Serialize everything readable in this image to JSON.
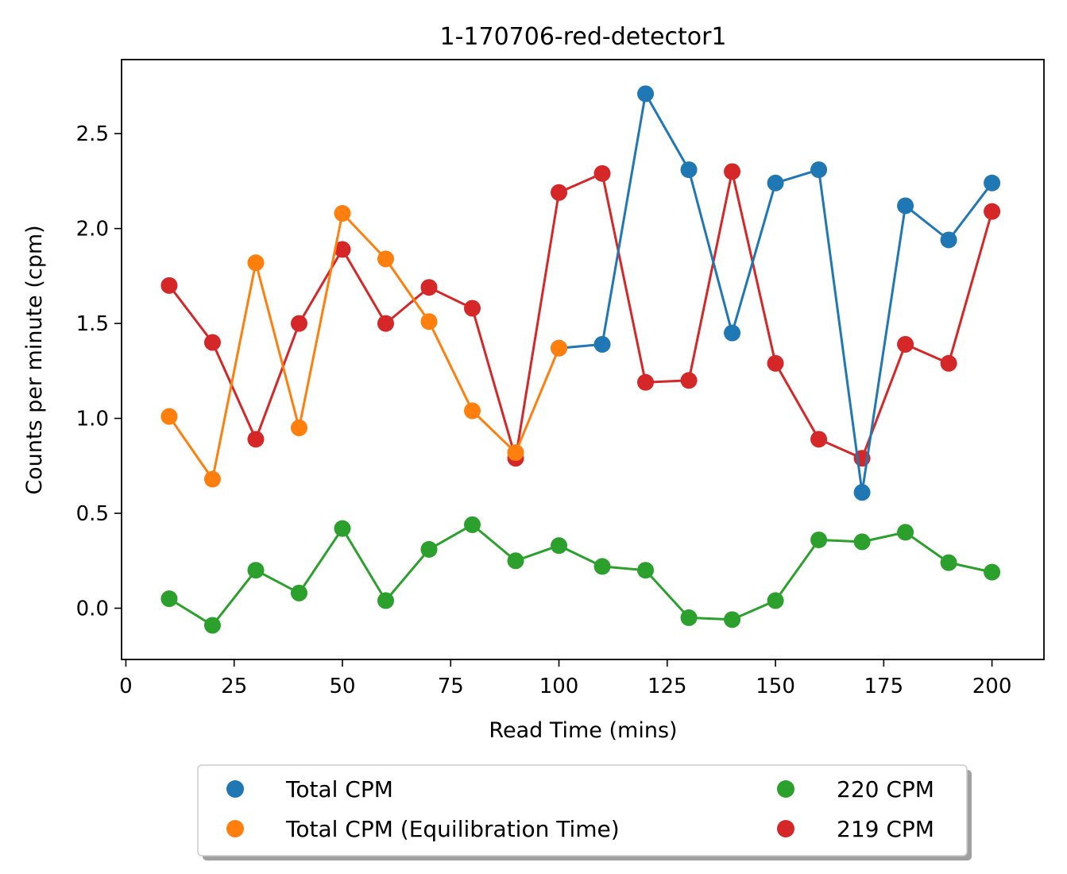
{
  "chart_data": {
    "type": "line",
    "title": "1-170706-red-detector1",
    "xlabel": "Read Time (mins)",
    "ylabel": "Counts per minute (cpm)",
    "xlim": [
      -1,
      212
    ],
    "ylim": [
      -0.27,
      2.89
    ],
    "x_ticks": [
      0,
      25,
      50,
      75,
      100,
      125,
      150,
      175,
      200
    ],
    "y_ticks": [
      0.0,
      0.5,
      1.0,
      1.5,
      2.0,
      2.5
    ],
    "x_tick_labels": [
      "0",
      "25",
      "50",
      "75",
      "100",
      "125",
      "150",
      "175",
      "200"
    ],
    "y_tick_labels": [
      "0.0",
      "0.5",
      "1.0",
      "1.5",
      "2.0",
      "2.5"
    ],
    "grid": false,
    "legend_position": "bottom-center, below plot, two columns",
    "series": [
      {
        "name": "Total CPM",
        "color": "#1f77b4",
        "x": [
          100,
          110,
          120,
          130,
          140,
          150,
          160,
          170,
          180,
          190,
          200
        ],
        "y": [
          1.37,
          1.39,
          2.71,
          2.31,
          1.45,
          2.24,
          2.31,
          0.61,
          2.12,
          1.94,
          2.24
        ]
      },
      {
        "name": "Total CPM (Equilibration Time)",
        "color": "#ff7f0e",
        "x": [
          10,
          20,
          30,
          40,
          50,
          60,
          70,
          80,
          90,
          100
        ],
        "y": [
          1.01,
          0.68,
          1.82,
          0.95,
          2.08,
          1.84,
          1.51,
          1.04,
          0.82,
          1.37
        ]
      },
      {
        "name": "220 CPM",
        "color": "#2ca02c",
        "x": [
          10,
          20,
          30,
          40,
          50,
          60,
          70,
          80,
          90,
          100,
          110,
          120,
          130,
          140,
          150,
          160,
          170,
          180,
          190,
          200
        ],
        "y": [
          0.05,
          -0.09,
          0.2,
          0.08,
          0.42,
          0.04,
          0.31,
          0.44,
          0.25,
          0.33,
          0.22,
          0.2,
          -0.05,
          -0.06,
          0.04,
          0.36,
          0.35,
          0.4,
          0.24,
          0.19
        ]
      },
      {
        "name": "219 CPM",
        "color": "#d62728",
        "x": [
          10,
          20,
          30,
          40,
          50,
          60,
          70,
          80,
          90,
          100,
          110,
          120,
          130,
          140,
          150,
          160,
          170,
          180,
          190,
          200
        ],
        "y": [
          1.7,
          1.4,
          0.89,
          1.5,
          1.89,
          1.5,
          1.69,
          1.58,
          0.79,
          2.19,
          2.29,
          1.19,
          1.2,
          2.3,
          1.29,
          0.89,
          0.79,
          1.39,
          1.29,
          2.09
        ]
      }
    ],
    "legend_order": [
      "Total CPM",
      "Total CPM (Equilibration Time)",
      "220 CPM",
      "219 CPM"
    ]
  }
}
